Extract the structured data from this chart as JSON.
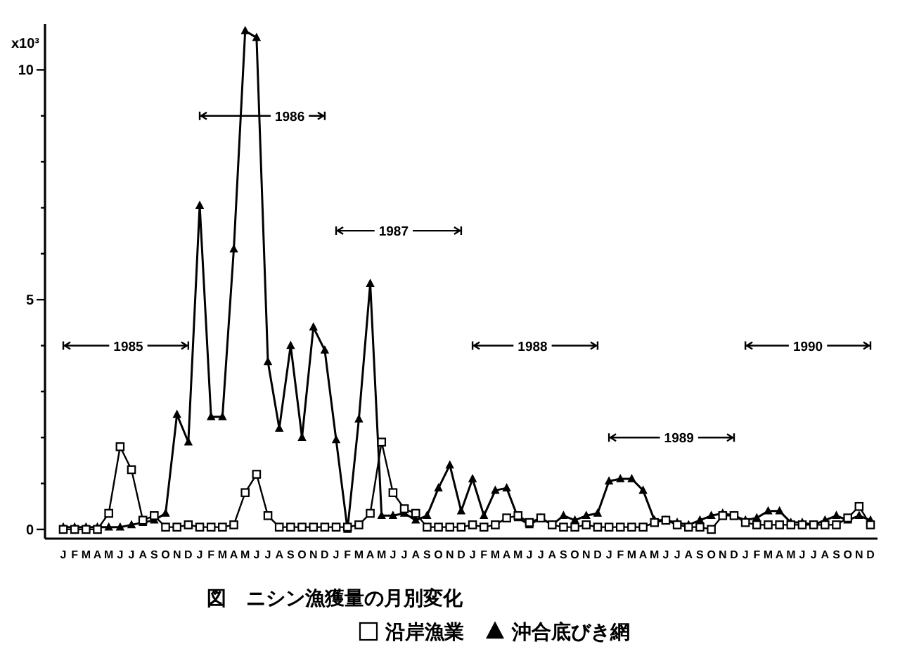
{
  "chart_data": {
    "type": "line",
    "title": "図　ニシン漁獲量の月別変化",
    "ylabel": "x10³",
    "categories": [
      "J",
      "F",
      "M",
      "A",
      "M",
      "J",
      "J",
      "A",
      "S",
      "O",
      "N",
      "D",
      "J",
      "F",
      "M",
      "A",
      "M",
      "J",
      "J",
      "A",
      "S",
      "O",
      "N",
      "D",
      "J",
      "F",
      "M",
      "A",
      "M",
      "J",
      "J",
      "A",
      "S",
      "O",
      "N",
      "D",
      "J",
      "F",
      "M",
      "A",
      "M",
      "J",
      "J",
      "A",
      "S",
      "O",
      "N",
      "D",
      "J",
      "F",
      "M",
      "A",
      "M",
      "J",
      "J",
      "A",
      "S",
      "O",
      "N",
      "D",
      "J",
      "F",
      "M",
      "A",
      "M",
      "J",
      "J",
      "A",
      "S",
      "O",
      "N",
      "D"
    ],
    "series": [
      {
        "name": "沿岸漁業",
        "color": "#000000",
        "marker": "square",
        "values": [
          0,
          0,
          0,
          0,
          0.35,
          1.8,
          1.3,
          0.2,
          0.3,
          0.05,
          0.05,
          0.1,
          0.05,
          0.05,
          0.05,
          0.1,
          0.8,
          1.2,
          0.3,
          0.05,
          0.05,
          0.05,
          0.05,
          0.05,
          0.05,
          0.05,
          0.1,
          0.35,
          1.9,
          0.8,
          0.45,
          0.35,
          0.05,
          0.05,
          0.05,
          0.05,
          0.1,
          0.05,
          0.1,
          0.25,
          0.3,
          0.15,
          0.25,
          0.1,
          0.05,
          0.05,
          0.1,
          0.05,
          0.05,
          0.05,
          0.05,
          0.05,
          0.15,
          0.2,
          0.1,
          0.05,
          0.05,
          0,
          0.3,
          0.3,
          0.15,
          0.1,
          0.1,
          0.1,
          0.1,
          0.1,
          0.1,
          0.1,
          0.1,
          0.25,
          0.5,
          0.1
        ]
      },
      {
        "name": "沖合底びき網",
        "color": "#000000",
        "marker": "triangle",
        "values": [
          0.05,
          0.05,
          0.05,
          0.05,
          0.05,
          0.05,
          0.1,
          0.15,
          0.2,
          0.35,
          2.5,
          1.9,
          7.05,
          2.45,
          2.45,
          6.1,
          10.85,
          10.7,
          3.65,
          2.2,
          4.0,
          2.0,
          4.4,
          3.9,
          1.95,
          0,
          2.4,
          5.35,
          0.3,
          0.3,
          0.35,
          0.2,
          0.3,
          0.9,
          1.4,
          0.4,
          1.1,
          0.3,
          0.85,
          0.9,
          0.25,
          0.1,
          0.25,
          0.1,
          0.3,
          0.2,
          0.3,
          0.35,
          1.05,
          1.1,
          1.1,
          0.85,
          0.2,
          0.2,
          0.15,
          0.1,
          0.2,
          0.3,
          0.35,
          0.3,
          0.2,
          0.25,
          0.4,
          0.4,
          0.15,
          0.15,
          0.1,
          0.2,
          0.3,
          0.2,
          0.3,
          0.2
        ]
      }
    ],
    "ylim": [
      -0.2,
      11
    ],
    "yticks": [
      0,
      {
        "value": 1,
        "label": null
      },
      {
        "value": 2,
        "label": null
      },
      {
        "value": 3,
        "label": null
      },
      {
        "value": 4,
        "label": null
      },
      5,
      {
        "value": 6,
        "label": null
      },
      {
        "value": 7,
        "label": null
      },
      {
        "value": 8,
        "label": null
      },
      {
        "value": 9,
        "label": null
      },
      10
    ],
    "annotations": [
      "1985",
      "1986",
      "1987",
      "1988",
      "1989",
      "1990"
    ],
    "legend": "bottom"
  }
}
